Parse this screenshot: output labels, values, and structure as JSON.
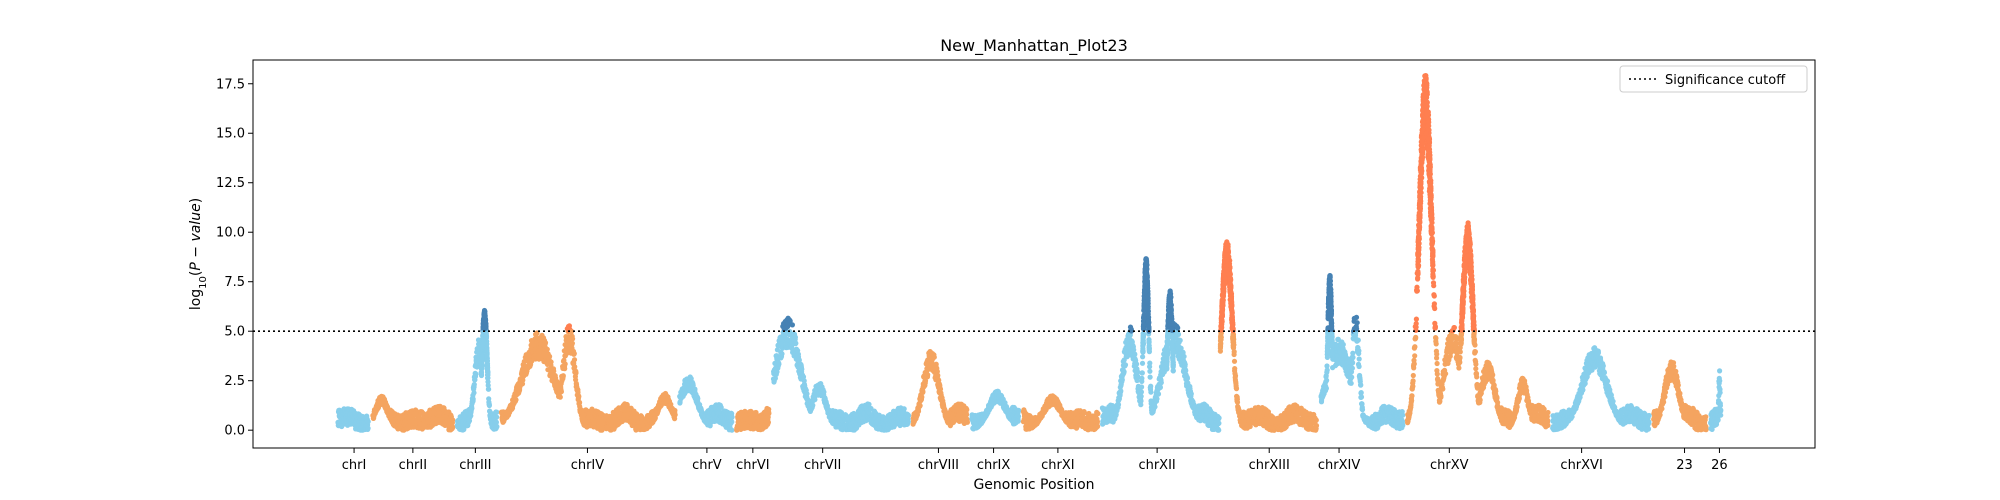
{
  "chart_data": {
    "type": "scatter",
    "title": "New_Manhattan_Plot23",
    "xlabel": "Genomic Position",
    "ylabel": "log10(P-value)",
    "ylim": [
      -0.9,
      18.7
    ],
    "y_ticks": [
      "0.0",
      "2.5",
      "5.0",
      "7.5",
      "10.0",
      "12.5",
      "15.0",
      "17.5"
    ],
    "threshold": 5.0,
    "legend": {
      "label": "Significance cutoff",
      "position": "top-right"
    },
    "grid": false,
    "colors": {
      "light_blue": "#87ceeb",
      "orange": "#f4a460",
      "dark_blue": "#4682b4",
      "coral": "#ff7f50",
      "threshold": "#000000"
    },
    "chromosomes": [
      {
        "label": "chrI",
        "start": 0.0,
        "end": 1.9,
        "center": 1.0,
        "color": "light_blue",
        "peaks": []
      },
      {
        "label": "chrII",
        "start": 1.9,
        "end": 6.5,
        "center": 4.2,
        "color": "orange",
        "peaks": [
          [
            2.5,
            1.6,
            0.35
          ]
        ]
      },
      {
        "label": "chrIII",
        "start": 6.5,
        "end": 8.9,
        "center": 7.6,
        "color": "light_blue",
        "peaks": [
          [
            7.8,
            4.2,
            0.25
          ]
        ],
        "sig_peaks": [
          [
            8.1,
            6.0,
            0.15
          ]
        ]
      },
      {
        "label": "chrIV",
        "start": 8.9,
        "end": 18.6,
        "center": 13.7,
        "color": "orange",
        "peaks": [
          [
            11.0,
            4.5,
            0.9
          ],
          [
            12.7,
            4.9,
            0.35
          ],
          [
            17.9,
            1.7,
            0.4
          ]
        ]
      },
      {
        "label": "chrV",
        "start": 18.6,
        "end": 21.7,
        "center": 20.2,
        "color": "light_blue",
        "peaks": [
          [
            19.2,
            2.5,
            0.5
          ]
        ]
      },
      {
        "label": "chrVI",
        "start": 21.7,
        "end": 23.7,
        "center": 22.7,
        "color": "orange",
        "peaks": []
      },
      {
        "label": "chrVII",
        "start": 23.7,
        "end": 31.3,
        "center": 26.5,
        "color": "light_blue",
        "peaks": [
          [
            24.6,
            5.2,
            0.7
          ],
          [
            26.3,
            2.2,
            0.4
          ]
        ]
      },
      {
        "label": "chrVIII",
        "start": 31.3,
        "end": 34.5,
        "center": 32.8,
        "color": "orange",
        "peaks": [
          [
            32.4,
            3.7,
            0.45
          ]
        ]
      },
      {
        "label": "chrIX",
        "start": 34.5,
        "end": 37.3,
        "center": 35.8,
        "color": "light_blue",
        "peaks": [
          [
            36.0,
            1.8,
            0.5
          ]
        ]
      },
      {
        "label": "chrXI",
        "start": 37.3,
        "end": 41.6,
        "center": 39.3,
        "color": "orange",
        "peaks": [
          [
            39.0,
            1.6,
            0.5
          ]
        ]
      },
      {
        "label": "chrXII",
        "start": 41.6,
        "end": 48.2,
        "center": 44.7,
        "color": "light_blue",
        "peaks": [
          [
            43.2,
            4.8,
            0.4
          ],
          [
            45.6,
            5.0,
            0.65
          ]
        ],
        "sig_peaks": [
          [
            44.1,
            8.6,
            0.15
          ],
          [
            45.4,
            7.0,
            0.15
          ]
        ]
      },
      {
        "label": "chrXIII",
        "start": 48.2,
        "end": 53.5,
        "center": 50.8,
        "color": "orange",
        "peaks": [],
        "sig_peaks": [
          [
            48.5,
            9.5,
            0.3
          ]
        ]
      },
      {
        "label": "chrXIV",
        "start": 53.5,
        "end": 58.2,
        "center": 54.6,
        "color": "light_blue",
        "peaks": [
          [
            54.6,
            4.2,
            0.7
          ],
          [
            55.5,
            5.6,
            0.2
          ]
        ],
        "sig_peaks": [
          [
            54.1,
            7.8,
            0.12
          ]
        ]
      },
      {
        "label": "chrXV",
        "start": 58.2,
        "end": 66.1,
        "center": 60.6,
        "color": "orange",
        "peaks": [
          [
            60.8,
            4.8,
            0.5
          ],
          [
            62.7,
            3.2,
            0.4
          ],
          [
            64.6,
            2.4,
            0.3
          ]
        ],
        "sig_peaks": [
          [
            59.3,
            17.8,
            0.35
          ],
          [
            61.6,
            10.3,
            0.3
          ]
        ]
      },
      {
        "label": "chrXVI",
        "start": 66.1,
        "end": 71.6,
        "center": 67.8,
        "color": "light_blue",
        "peaks": [
          [
            68.5,
            3.8,
            0.7
          ]
        ]
      },
      {
        "label": "23",
        "start": 71.6,
        "end": 74.7,
        "center": 73.4,
        "color": "orange",
        "peaks": [
          [
            72.7,
            3.2,
            0.4
          ]
        ]
      },
      {
        "label": "26",
        "start": 74.7,
        "end": 75.5,
        "center": 75.3,
        "color": "light_blue",
        "peaks": [
          [
            75.3,
            2.9,
            0.04
          ]
        ]
      }
    ]
  }
}
